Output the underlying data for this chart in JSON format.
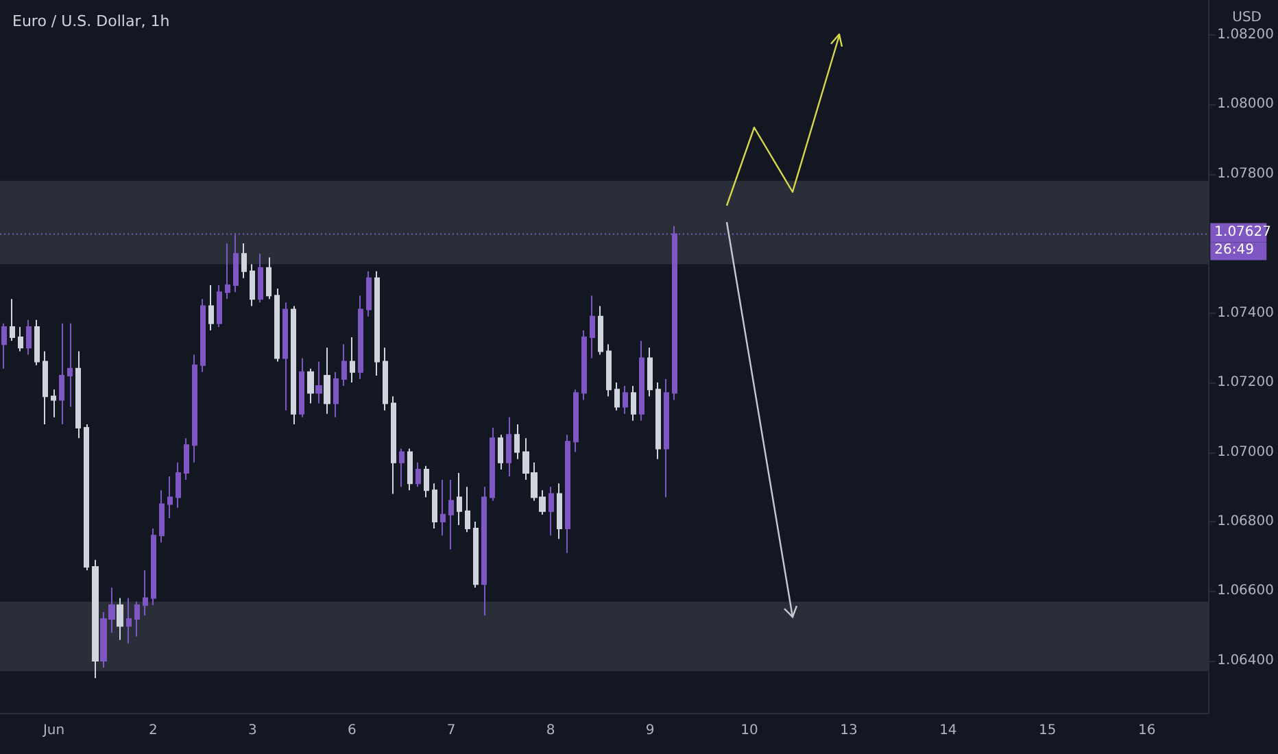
{
  "chart_data": {
    "type": "candlestick",
    "title": "Euro / U.S. Dollar, 1h",
    "ylabel": "USD",
    "categories": [
      null,
      null,
      null,
      null,
      null,
      null,
      "Jun",
      null,
      null,
      null,
      null,
      null,
      null,
      null,
      null,
      null,
      null,
      null,
      "2",
      null,
      null,
      null,
      null,
      null,
      null,
      null,
      null,
      null,
      null,
      null,
      "3",
      null,
      null,
      null,
      null,
      null,
      null,
      null,
      null,
      null,
      null,
      null,
      "6",
      null,
      null,
      null,
      null,
      null,
      null,
      null,
      null,
      null,
      null,
      null,
      "7",
      null,
      null,
      null,
      null,
      null,
      null,
      null,
      null,
      null,
      null,
      null,
      "8",
      null,
      null,
      null,
      null,
      null,
      null,
      null,
      null,
      null,
      null,
      null,
      "9",
      null,
      null,
      null,
      null,
      null,
      null,
      null,
      null,
      null,
      null,
      null,
      "10",
      null,
      null,
      null,
      null,
      null,
      null,
      null,
      null,
      null,
      null,
      null,
      "13",
      null,
      null,
      null,
      null,
      null,
      null,
      null,
      null,
      null,
      null,
      null,
      "14",
      null,
      null,
      null,
      null,
      null,
      null,
      null,
      null,
      null,
      null,
      null,
      "15",
      null,
      null,
      null,
      null,
      null,
      null,
      null,
      null,
      null,
      null,
      null,
      "16",
      null,
      null,
      null,
      null,
      null,
      null,
      null
    ],
    "ohlc": [
      [
        1.0731,
        1.0737,
        1.0724,
        1.0736
      ],
      [
        1.0736,
        1.0744,
        1.0732,
        1.0733
      ],
      [
        1.0733,
        1.0736,
        1.0729,
        1.073
      ],
      [
        1.073,
        1.0738,
        1.0728,
        1.0736
      ],
      [
        1.0736,
        1.0738,
        1.0725,
        1.0726
      ],
      [
        1.0726,
        1.0729,
        1.0708,
        1.0716
      ],
      [
        1.0716,
        1.0718,
        1.071,
        1.0715
      ],
      [
        1.0715,
        1.0737,
        1.0708,
        1.0722
      ],
      [
        1.0722,
        1.0737,
        1.0713,
        1.0724
      ],
      [
        1.0724,
        1.0729,
        1.0704,
        1.0707
      ],
      [
        1.0707,
        1.0708,
        1.0666,
        1.0667
      ],
      [
        1.0667,
        1.0669,
        1.0635,
        1.064
      ],
      [
        1.064,
        1.0654,
        1.0638,
        1.0652
      ],
      [
        1.0652,
        1.0661,
        1.0648,
        1.0656
      ],
      [
        1.0656,
        1.0658,
        1.0646,
        1.065
      ],
      [
        1.065,
        1.0658,
        1.0645,
        1.0652
      ],
      [
        1.0652,
        1.0657,
        1.0647,
        1.0656
      ],
      [
        1.0656,
        1.0666,
        1.0653,
        1.0658
      ],
      [
        1.0658,
        1.0678,
        1.0656,
        1.0676
      ],
      [
        1.0676,
        1.0689,
        1.0674,
        1.0685
      ],
      [
        1.0685,
        1.0693,
        1.0681,
        1.0687
      ],
      [
        1.0687,
        1.0697,
        1.0684,
        1.0694
      ],
      [
        1.0694,
        1.0704,
        1.0692,
        1.0702
      ],
      [
        1.0702,
        1.0728,
        1.0697,
        1.0725
      ],
      [
        1.0725,
        1.0744,
        1.0723,
        1.0742
      ],
      [
        1.0742,
        1.0748,
        1.0735,
        1.0737
      ],
      [
        1.0737,
        1.0748,
        1.0736,
        1.0746
      ],
      [
        1.0746,
        1.076,
        1.0744,
        1.0748
      ],
      [
        1.0748,
        1.0763,
        1.0746,
        1.0757
      ],
      [
        1.0757,
        1.076,
        1.075,
        1.0752
      ],
      [
        1.0752,
        1.0754,
        1.0742,
        1.0744
      ],
      [
        1.0744,
        1.0757,
        1.0743,
        1.0753
      ],
      [
        1.0753,
        1.0756,
        1.0744,
        1.0745
      ],
      [
        1.0745,
        1.0747,
        1.0726,
        1.0727
      ],
      [
        1.0727,
        1.0743,
        1.0712,
        1.0741
      ],
      [
        1.0741,
        1.0742,
        1.0708,
        1.0711
      ],
      [
        1.0711,
        1.0727,
        1.071,
        1.0723
      ],
      [
        1.0723,
        1.0724,
        1.0714,
        1.0717
      ],
      [
        1.0717,
        1.0726,
        1.0714,
        1.0719
      ],
      [
        1.0722,
        1.073,
        1.0711,
        1.0714
      ],
      [
        1.0714,
        1.0723,
        1.071,
        1.0721
      ],
      [
        1.0721,
        1.0731,
        1.0719,
        1.0726
      ],
      [
        1.0726,
        1.0733,
        1.072,
        1.0723
      ],
      [
        1.0723,
        1.0745,
        1.0721,
        1.0741
      ],
      [
        1.0741,
        1.0752,
        1.0739,
        1.075
      ],
      [
        1.075,
        1.0752,
        1.0722,
        1.0726
      ],
      [
        1.0726,
        1.073,
        1.0712,
        1.0714
      ],
      [
        1.0714,
        1.0716,
        1.0688,
        1.0697
      ],
      [
        1.0697,
        1.0701,
        1.069,
        1.07
      ],
      [
        1.07,
        1.0701,
        1.0689,
        1.0691
      ],
      [
        1.0691,
        1.0697,
        1.069,
        1.0695
      ],
      [
        1.0695,
        1.0696,
        1.0687,
        1.0689
      ],
      [
        1.0689,
        1.0691,
        1.0678,
        1.068
      ],
      [
        1.068,
        1.0692,
        1.0676,
        1.0682
      ],
      [
        1.0682,
        1.0692,
        1.0672,
        1.0686
      ],
      [
        1.0687,
        1.0694,
        1.0679,
        1.0683
      ],
      [
        1.0683,
        1.069,
        1.0677,
        1.0678
      ],
      [
        1.0678,
        1.068,
        1.0661,
        1.0662
      ],
      [
        1.0662,
        1.069,
        1.0653,
        1.0687
      ],
      [
        1.0687,
        1.0707,
        1.0686,
        1.0704
      ],
      [
        1.0704,
        1.0705,
        1.0695,
        1.0697
      ],
      [
        1.0697,
        1.071,
        1.0693,
        1.0705
      ],
      [
        1.0705,
        1.0708,
        1.0698,
        1.07
      ],
      [
        1.07,
        1.0704,
        1.0692,
        1.0694
      ],
      [
        1.0694,
        1.0697,
        1.0686,
        1.0687
      ],
      [
        1.0687,
        1.0689,
        1.0682,
        1.0683
      ],
      [
        1.0683,
        1.069,
        1.0676,
        1.0688
      ],
      [
        1.0688,
        1.0691,
        1.0675,
        1.0678
      ],
      [
        1.0678,
        1.0705,
        1.0671,
        1.0703
      ],
      [
        1.0703,
        1.0718,
        1.07,
        1.0717
      ],
      [
        1.0717,
        1.0735,
        1.0715,
        1.0733
      ],
      [
        1.0733,
        1.0745,
        1.0727,
        1.0739
      ],
      [
        1.0739,
        1.0742,
        1.0728,
        1.0729
      ],
      [
        1.0729,
        1.0731,
        1.0716,
        1.0718
      ],
      [
        1.0718,
        1.072,
        1.0712,
        1.0713
      ],
      [
        1.0713,
        1.0719,
        1.0711,
        1.0717
      ],
      [
        1.0717,
        1.0719,
        1.0709,
        1.0711
      ],
      [
        1.0711,
        1.0732,
        1.0709,
        1.0727
      ],
      [
        1.0727,
        1.073,
        1.0716,
        1.0718
      ],
      [
        1.0718,
        1.072,
        1.0698,
        1.0701
      ],
      [
        1.0701,
        1.0721,
        1.0687,
        1.0717
      ],
      [
        1.0717,
        1.0765,
        1.0715,
        1.07627
      ],
      null,
      null,
      null,
      null,
      null,
      null,
      null,
      null,
      null,
      null,
      null,
      null,
      null,
      null,
      null,
      null,
      null,
      null,
      null,
      null,
      null,
      null,
      null,
      null,
      null,
      null,
      null,
      null,
      null,
      null,
      null,
      null,
      null,
      null,
      null,
      null,
      null,
      null,
      null,
      null,
      null,
      null,
      null,
      null,
      null,
      null,
      null,
      null,
      null,
      null,
      null,
      null,
      null,
      null,
      null,
      null,
      null,
      null,
      null,
      null,
      null,
      null,
      null,
      null
    ],
    "colors": [
      "#7e57c2",
      "#d1d4dc",
      "#d1d4dc",
      "#7e57c2",
      "#d1d4dc",
      "#d1d4dc",
      "#d1d4dc",
      "#7e57c2",
      "#7e57c2",
      "#d1d4dc",
      "#d1d4dc",
      "#d1d4dc",
      "#7e57c2",
      "#7e57c2",
      "#d1d4dc",
      "#7e57c2",
      "#7e57c2",
      "#7e57c2",
      "#7e57c2",
      "#7e57c2",
      "#7e57c2",
      "#7e57c2",
      "#7e57c2",
      "#7e57c2",
      "#7e57c2",
      "#d1d4dc",
      "#7e57c2",
      "#7e57c2",
      "#7e57c2",
      "#d1d4dc",
      "#d1d4dc",
      "#7e57c2",
      "#d1d4dc",
      "#d1d4dc",
      "#7e57c2",
      "#d1d4dc",
      "#7e57c2",
      "#d1d4dc",
      "#7e57c2",
      "#d1d4dc",
      "#7e57c2",
      "#7e57c2",
      "#d1d4dc",
      "#7e57c2",
      "#7e57c2",
      "#d1d4dc",
      "#d1d4dc",
      "#d1d4dc",
      "#7e57c2",
      "#d1d4dc",
      "#7e57c2",
      "#d1d4dc",
      "#d1d4dc",
      "#7e57c2",
      "#7e57c2",
      "#d1d4dc",
      "#d1d4dc",
      "#d1d4dc",
      "#7e57c2",
      "#7e57c2",
      "#d1d4dc",
      "#7e57c2",
      "#d1d4dc",
      "#d1d4dc",
      "#d1d4dc",
      "#d1d4dc",
      "#7e57c2",
      "#d1d4dc",
      "#7e57c2",
      "#7e57c2",
      "#7e57c2",
      "#7e57c2",
      "#d1d4dc",
      "#d1d4dc",
      "#d1d4dc",
      "#7e57c2",
      "#d1d4dc",
      "#7e57c2",
      "#d1d4dc",
      "#d1d4dc",
      "#7e57c2",
      "#7e57c2",
      null,
      null,
      null,
      null,
      null,
      null,
      null,
      null,
      null,
      null,
      null,
      null,
      null,
      null,
      null,
      null,
      null,
      null,
      null,
      null,
      null,
      null,
      null,
      null,
      null,
      null,
      null,
      null,
      null,
      null,
      null,
      null,
      null,
      null,
      null,
      null,
      null,
      null,
      null,
      null,
      null,
      null,
      null,
      null,
      null,
      null,
      null,
      null,
      null,
      null,
      null,
      null,
      null,
      null,
      null,
      null,
      null,
      null,
      null,
      null,
      null,
      null,
      null,
      null
    ],
    "ylim": [
      1.0625,
      1.083
    ],
    "yticks": [
      {
        "value": 1.064,
        "label": "1.06400"
      },
      {
        "value": 1.066,
        "label": "1.06600"
      },
      {
        "value": 1.068,
        "label": "1.06800"
      },
      {
        "value": 1.07,
        "label": "1.07000"
      },
      {
        "value": 1.072,
        "label": "1.07200"
      },
      {
        "value": 1.074,
        "label": "1.07400"
      },
      {
        "value": 1.078,
        "label": "1.07800"
      },
      {
        "value": 1.08,
        "label": "1.08000"
      },
      {
        "value": 1.082,
        "label": "1.08200"
      }
    ],
    "grid": false,
    "bands": [
      {
        "axis": "y",
        "from": 1.0754,
        "to": 1.0778,
        "color": "#2a2e39"
      },
      {
        "axis": "y",
        "from": 1.0637,
        "to": 1.0657,
        "color": "#2a2e39"
      }
    ],
    "ref_lines": [
      {
        "axis": "y",
        "value": 1.07627,
        "label": "1.07627",
        "color": "#7e57c2",
        "line_style": "dotted"
      }
    ],
    "annotations": [
      "26:49"
    ]
  }
}
